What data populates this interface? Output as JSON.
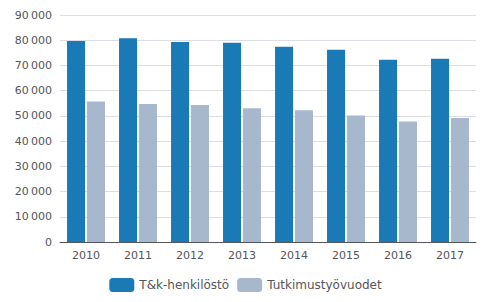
{
  "chart_data": {
    "type": "bar",
    "categories": [
      "2010",
      "2011",
      "2012",
      "2013",
      "2014",
      "2015",
      "2016",
      "2017"
    ],
    "series": [
      {
        "name": "T&k-henkilöstö",
        "color": "#1a7ab5",
        "values": [
          79700,
          80800,
          79300,
          79000,
          77400,
          76200,
          72300,
          72700
        ]
      },
      {
        "name": "Tutkimustyövuodet",
        "color": "#a8b8cc",
        "values": [
          55700,
          54700,
          54300,
          53000,
          52200,
          50200,
          47800,
          49200
        ]
      }
    ],
    "ylim": [
      0,
      90000
    ],
    "yticks": [
      0,
      {
        "value": 10000,
        "label": "10 000"
      },
      {
        "value": 20000,
        "label": "20 000"
      },
      {
        "value": 30000,
        "label": "30 000"
      },
      {
        "value": 40000,
        "label": "40 000"
      },
      {
        "value": 50000,
        "label": "50 000"
      },
      {
        "value": 60000,
        "label": "60 000"
      },
      {
        "value": 70000,
        "label": "70 000"
      },
      {
        "value": 80000,
        "label": "80 000"
      },
      {
        "value": 90000,
        "label": "90 000"
      }
    ],
    "grid": true,
    "legend": "bottom"
  }
}
